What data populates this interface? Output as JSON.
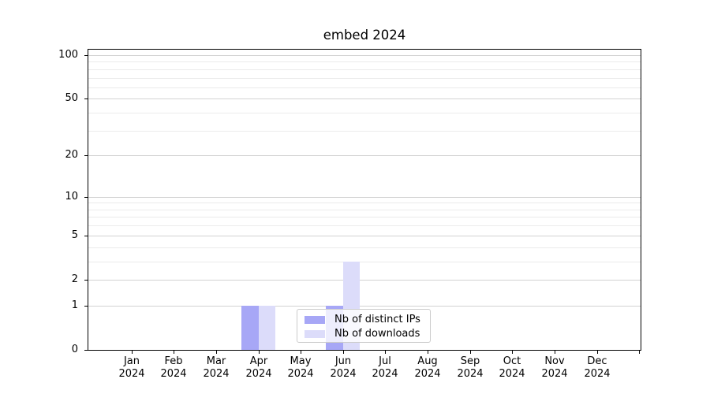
{
  "chart_data": {
    "type": "bar",
    "title": "embed 2024",
    "categories": [
      "Jan",
      "Feb",
      "Mar",
      "Apr",
      "May",
      "Jun",
      "Jul",
      "Aug",
      "Sep",
      "Oct",
      "Nov",
      "Dec"
    ],
    "year_label": "2024",
    "series": [
      {
        "name": "Nb of distinct IPs",
        "color": "#a7a7f6",
        "values": [
          0,
          0,
          0,
          1,
          0,
          1,
          0,
          0,
          0,
          0,
          0,
          0
        ]
      },
      {
        "name": "Nb of downloads",
        "color": "#dcdcfa",
        "values": [
          0,
          0,
          0,
          1,
          0,
          3,
          0,
          0,
          0,
          0,
          0,
          0
        ]
      }
    ],
    "y_axis": {
      "scale": "log1p",
      "ticks": [
        0,
        1,
        2,
        5,
        10,
        20,
        50,
        100
      ],
      "minor_ticks": [
        3,
        4,
        6,
        7,
        8,
        9,
        30,
        40,
        60,
        70,
        80,
        90
      ],
      "max": 110.4
    },
    "grid": true,
    "legend_position": "lower center",
    "colors": {
      "major_grid": "#d2d2d2",
      "minor_grid": "#ebebeb",
      "axis": "#000000",
      "text": "#000000"
    }
  }
}
